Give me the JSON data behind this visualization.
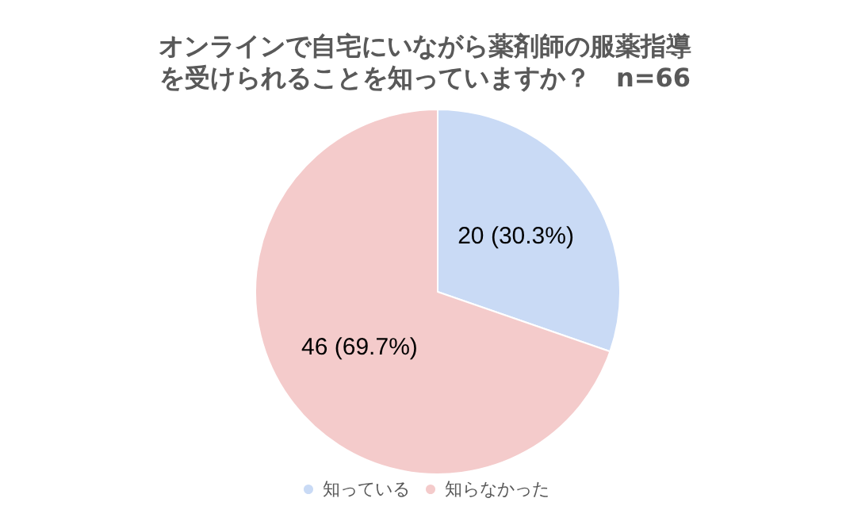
{
  "chart_data": {
    "type": "pie",
    "title": "オンラインで自宅にいながら薬剤師の服薬指導を受けられることを知っていますか？　n=66",
    "categories": [
      "知っている",
      "知らなかった"
    ],
    "values": [
      20,
      46
    ],
    "colors": [
      "#c9daf5",
      "#f4cbcb"
    ],
    "value_labels": [
      "20 (30.3%)",
      "46 (69.7%)"
    ],
    "legend": "bottom"
  }
}
